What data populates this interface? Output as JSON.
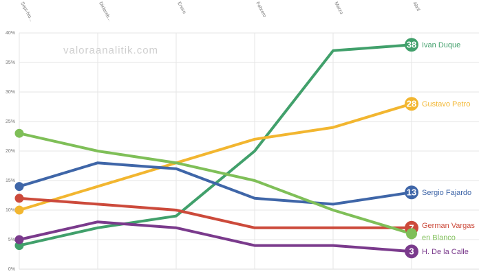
{
  "watermark": "valoraanalitik.com",
  "chart_data": {
    "type": "line",
    "categories": [
      "Sept-No...",
      "Diciemb...",
      "Enero",
      "Febrero",
      "Marzo",
      "Abril"
    ],
    "y_ticks": [
      "0%",
      "5%",
      "10%",
      "15%",
      "20%",
      "25%",
      "30%",
      "35%",
      "40%"
    ],
    "ylim": [
      0,
      40
    ],
    "grid": true,
    "series": [
      {
        "name": "Ivan Duque",
        "badge": "38",
        "color": "#41a06b",
        "values": [
          4,
          7,
          9,
          20,
          37,
          38
        ]
      },
      {
        "name": "Gustavo Petro",
        "badge": "28",
        "color": "#f2b630",
        "values": [
          10,
          14,
          18,
          22,
          24,
          28
        ]
      },
      {
        "name": "Sergio Fajardo",
        "badge": "13",
        "color": "#3f66a8",
        "values": [
          14,
          18,
          17,
          12,
          11,
          13
        ]
      },
      {
        "name": "German Vargas",
        "badge": "7",
        "color": "#cc4a3b",
        "values": [
          12,
          11,
          10,
          7,
          7,
          7
        ]
      },
      {
        "name": "en Blanco",
        "badge": "",
        "color": "#7fbf58",
        "values": [
          23,
          20,
          18,
          15,
          10,
          6
        ]
      },
      {
        "name": "H. De la Calle",
        "badge": "3",
        "color": "#7a3a8c",
        "values": [
          5,
          8,
          7,
          4,
          4,
          3
        ]
      }
    ]
  }
}
